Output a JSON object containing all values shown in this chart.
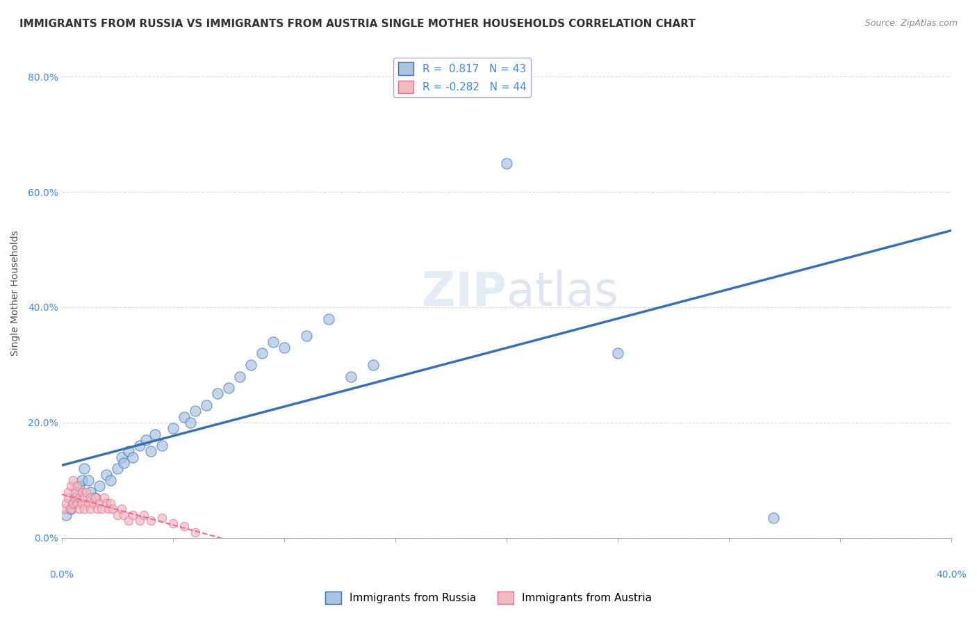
{
  "title": "IMMIGRANTS FROM RUSSIA VS IMMIGRANTS FROM AUSTRIA SINGLE MOTHER HOUSEHOLDS CORRELATION CHART",
  "source": "Source: ZipAtlas.com",
  "ylabel": "Single Mother Households",
  "ytick_values": [
    0.0,
    0.2,
    0.4,
    0.6,
    0.8
  ],
  "xlim": [
    0.0,
    0.4
  ],
  "ylim": [
    0.0,
    0.85
  ],
  "russia_R": 0.817,
  "russia_N": 43,
  "austria_R": -0.282,
  "austria_N": 44,
  "russia_color": "#a8c4e0",
  "russia_line_color": "#3a6fb0",
  "austria_color": "#f4b8c1",
  "austria_line_color": "#e07090",
  "background_color": "#ffffff",
  "grid_color": "#c8c8d0",
  "watermark_zip": "ZIP",
  "watermark_atlas": "atlas",
  "russia_scatter_x": [
    0.002,
    0.004,
    0.005,
    0.006,
    0.007,
    0.008,
    0.009,
    0.01,
    0.012,
    0.013,
    0.015,
    0.017,
    0.02,
    0.022,
    0.025,
    0.027,
    0.028,
    0.03,
    0.032,
    0.035,
    0.038,
    0.04,
    0.042,
    0.045,
    0.05,
    0.055,
    0.058,
    0.06,
    0.065,
    0.07,
    0.075,
    0.08,
    0.085,
    0.09,
    0.095,
    0.1,
    0.11,
    0.12,
    0.13,
    0.14,
    0.2,
    0.25,
    0.32
  ],
  "russia_scatter_y": [
    0.04,
    0.05,
    0.06,
    0.07,
    0.08,
    0.09,
    0.1,
    0.12,
    0.1,
    0.08,
    0.07,
    0.09,
    0.11,
    0.1,
    0.12,
    0.14,
    0.13,
    0.15,
    0.14,
    0.16,
    0.17,
    0.15,
    0.18,
    0.16,
    0.19,
    0.21,
    0.2,
    0.22,
    0.23,
    0.25,
    0.26,
    0.28,
    0.3,
    0.32,
    0.34,
    0.33,
    0.35,
    0.38,
    0.28,
    0.3,
    0.65,
    0.32,
    0.035
  ],
  "austria_scatter_x": [
    0.001,
    0.002,
    0.003,
    0.003,
    0.004,
    0.004,
    0.005,
    0.005,
    0.006,
    0.006,
    0.007,
    0.007,
    0.008,
    0.008,
    0.009,
    0.009,
    0.01,
    0.01,
    0.011,
    0.012,
    0.013,
    0.013,
    0.014,
    0.015,
    0.016,
    0.017,
    0.018,
    0.019,
    0.02,
    0.021,
    0.022,
    0.023,
    0.025,
    0.027,
    0.028,
    0.03,
    0.032,
    0.035,
    0.037,
    0.04,
    0.045,
    0.05,
    0.055,
    0.06
  ],
  "austria_scatter_y": [
    0.05,
    0.06,
    0.07,
    0.08,
    0.05,
    0.09,
    0.06,
    0.1,
    0.07,
    0.08,
    0.09,
    0.06,
    0.07,
    0.05,
    0.08,
    0.06,
    0.07,
    0.05,
    0.08,
    0.06,
    0.07,
    0.05,
    0.06,
    0.07,
    0.05,
    0.06,
    0.05,
    0.07,
    0.06,
    0.05,
    0.06,
    0.05,
    0.04,
    0.05,
    0.04,
    0.03,
    0.04,
    0.03,
    0.04,
    0.03,
    0.035,
    0.025,
    0.02,
    0.01
  ],
  "title_fontsize": 11,
  "axis_label_fontsize": 10,
  "tick_fontsize": 10,
  "legend_fontsize": 11
}
